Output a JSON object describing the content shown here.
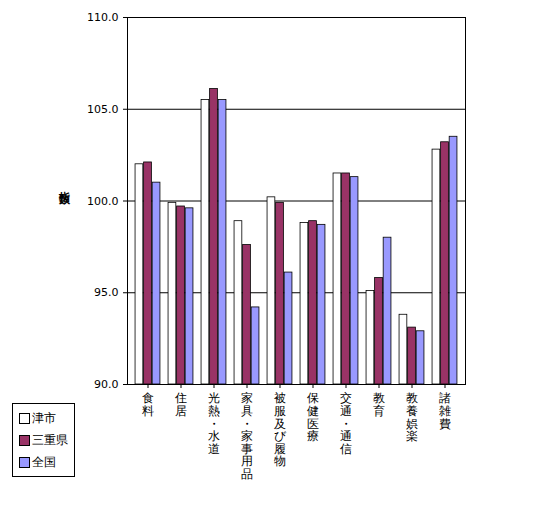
{
  "chart_data": {
    "type": "bar",
    "y_label": "指数",
    "categories": [
      "食料",
      "住居",
      "光熱・水道",
      "家具・家事用品",
      "被服及び履物",
      "保健医療",
      "交通・通信",
      "教育",
      "教養娯楽",
      "諸雑費"
    ],
    "series": [
      {
        "name": "津市",
        "color": "#ffffff",
        "values": [
          102.0,
          99.9,
          105.5,
          98.9,
          100.2,
          98.8,
          101.5,
          95.1,
          93.8,
          102.8
        ]
      },
      {
        "name": "三重県",
        "color": "#993366",
        "values": [
          102.1,
          99.7,
          106.1,
          97.6,
          99.9,
          98.9,
          101.5,
          95.8,
          93.1,
          103.2
        ]
      },
      {
        "name": "全国",
        "color": "#9999ff",
        "values": [
          101.0,
          99.6,
          105.5,
          94.2,
          96.1,
          98.7,
          101.3,
          98.0,
          92.9,
          103.5
        ]
      }
    ],
    "ylim": [
      90,
      110
    ],
    "yticks": [
      {
        "value": 90,
        "label": "90.0"
      },
      {
        "value": 95,
        "label": "95.0"
      },
      {
        "value": 100,
        "label": "100.0"
      },
      {
        "value": 105,
        "label": "105.0"
      },
      {
        "value": 110,
        "label": "110.0"
      }
    ],
    "grid": true,
    "legend": "bottom-left"
  }
}
